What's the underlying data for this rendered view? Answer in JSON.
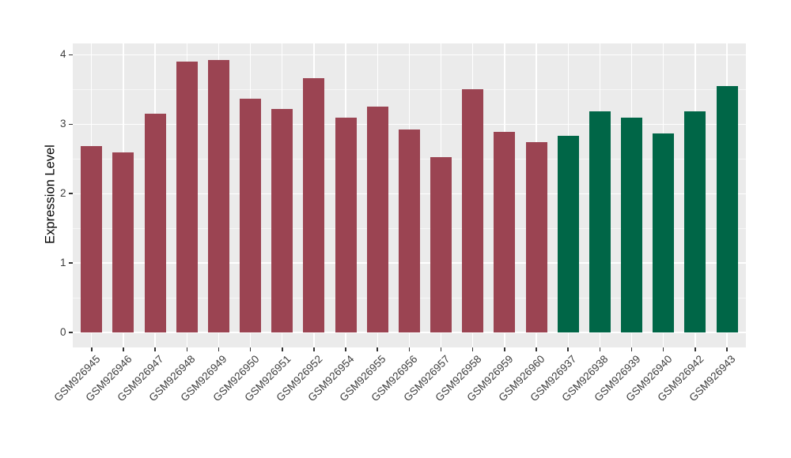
{
  "chart_data": {
    "type": "bar",
    "title": "",
    "xlabel": "",
    "ylabel": "Expression Level",
    "ylim": [
      0,
      4.16
    ],
    "yticks": [
      0,
      1,
      2,
      3,
      4
    ],
    "yticks_minor": [
      0.5,
      1.5,
      2.5,
      3.5
    ],
    "grid": "major-and-minor, white on gray panel",
    "legend_position": "none",
    "panel_background": "#EBEBEB",
    "categories": [
      "GSM926945",
      "GSM926946",
      "GSM926947",
      "GSM926948",
      "GSM926949",
      "GSM926950",
      "GSM926951",
      "GSM926952",
      "GSM926954",
      "GSM926955",
      "GSM926956",
      "GSM926957",
      "GSM926958",
      "GSM926959",
      "GSM926960",
      "GSM926937",
      "GSM926938",
      "GSM926939",
      "GSM926940",
      "GSM926942",
      "GSM926943"
    ],
    "values": [
      2.69,
      2.59,
      3.15,
      3.9,
      3.93,
      3.37,
      3.22,
      3.66,
      3.1,
      3.25,
      2.92,
      2.53,
      3.5,
      2.89,
      2.74,
      2.83,
      3.18,
      3.1,
      2.87,
      3.18,
      3.55
    ],
    "groups": [
      "maroon",
      "maroon",
      "maroon",
      "maroon",
      "maroon",
      "maroon",
      "maroon",
      "maroon",
      "maroon",
      "maroon",
      "maroon",
      "maroon",
      "maroon",
      "maroon",
      "maroon",
      "green",
      "green",
      "green",
      "green",
      "green",
      "green"
    ],
    "group_colors": {
      "maroon": "#9B4452",
      "green": "#006647"
    },
    "text_color": "#3d3d3d",
    "axis_title_color": "#000000",
    "gridline_color": "#FFFFFF"
  }
}
